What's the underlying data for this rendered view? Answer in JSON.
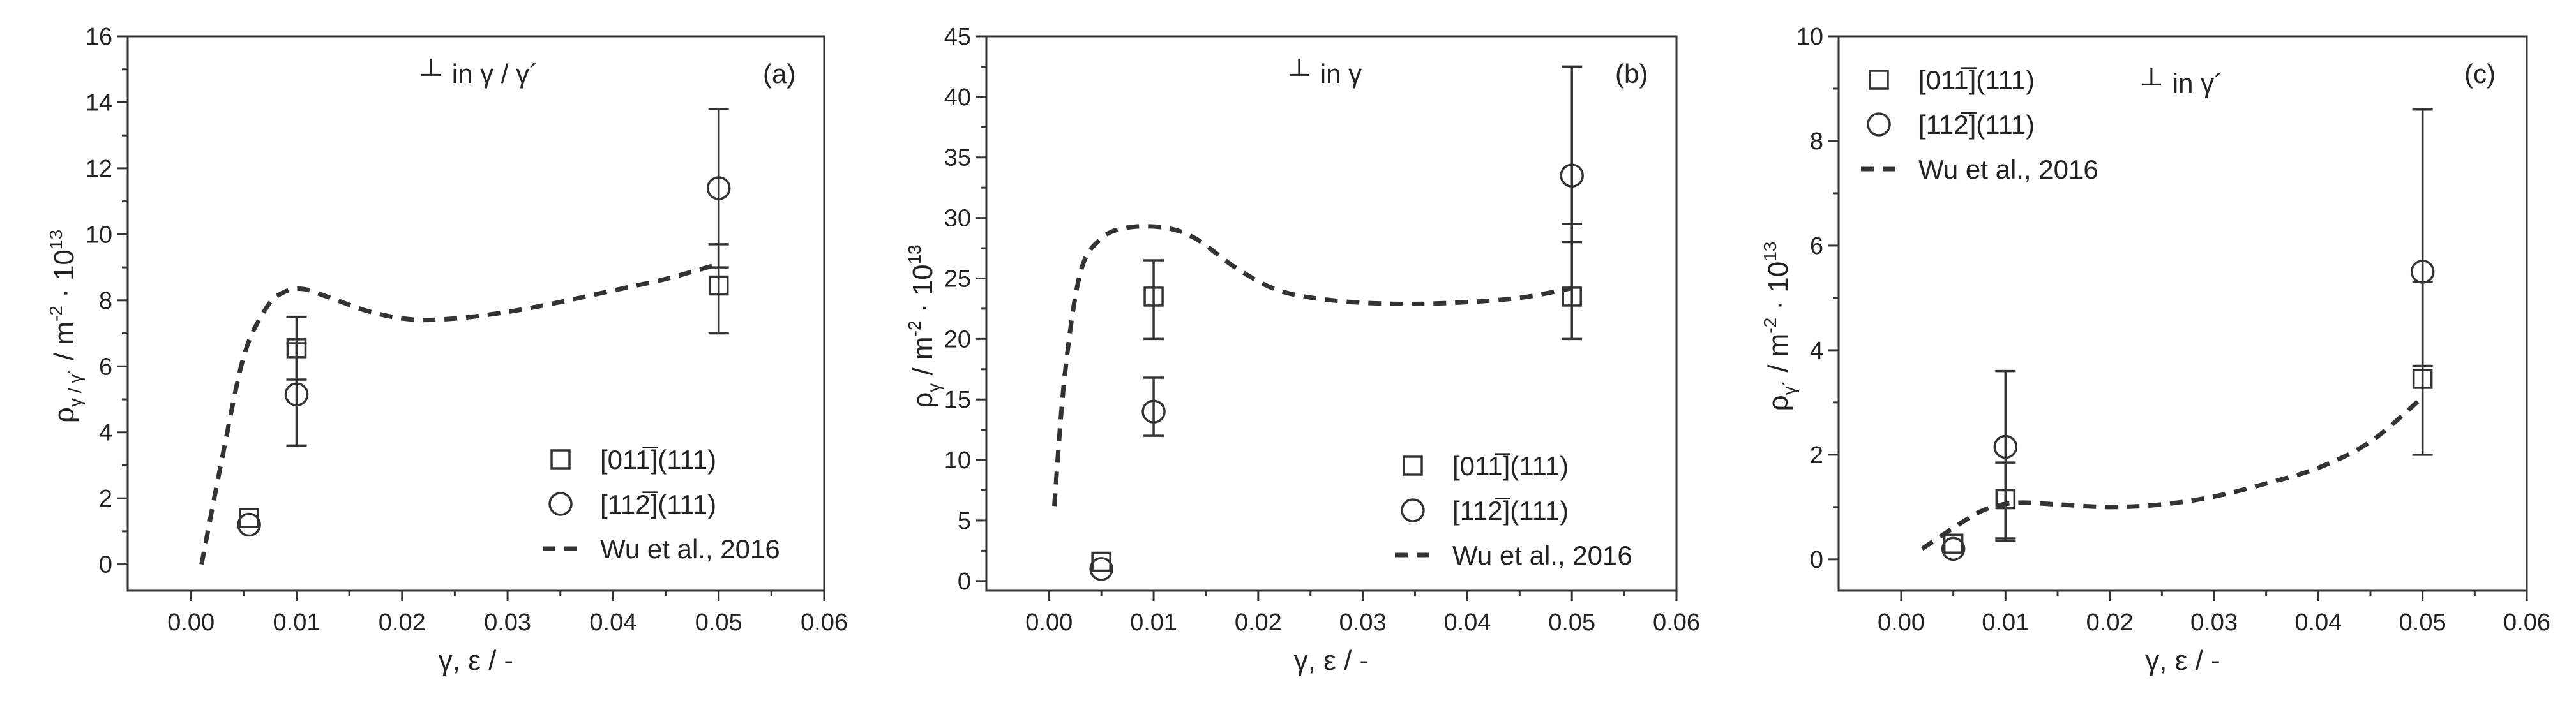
{
  "chart_data": [
    {
      "type": "scatter",
      "panel_label": "(a)",
      "annotation": {
        "symbol": "┴",
        "text": "in γ / γ´"
      },
      "xlabel": "γ, ε / -",
      "ylabel": {
        "main": "ρ",
        "sub": "γ / γ´",
        "rest": " / m",
        "sup1": "-2",
        "dot": " · 10",
        "sup2": "13"
      },
      "xlim": [
        -0.006,
        0.06
      ],
      "ylim": [
        -0.8,
        16
      ],
      "xticks": [
        "0.00",
        "0.01",
        "0.02",
        "0.03",
        "0.04",
        "0.05",
        "0.06"
      ],
      "xtick_values": [
        0,
        0.01,
        0.02,
        0.03,
        0.04,
        0.05,
        0.06
      ],
      "yticks": [
        "0",
        "2",
        "4",
        "6",
        "8",
        "10",
        "12",
        "14",
        "16"
      ],
      "ytick_values": [
        0,
        2,
        4,
        6,
        8,
        10,
        12,
        14,
        16
      ],
      "legend_position": "bottom-right",
      "legend": [
        {
          "marker": "square",
          "label": "[011̅](111)"
        },
        {
          "marker": "circle",
          "label": "[112̅](111)"
        },
        {
          "marker": "dashed",
          "label": "Wu et al., 2016"
        }
      ],
      "series": [
        {
          "marker": "square",
          "points": [
            {
              "x": 0.0055,
              "y": 1.4,
              "err": null
            },
            {
              "x": 0.01,
              "y": 6.55,
              "err": [
                5.6,
                7.5
              ]
            },
            {
              "x": 0.05,
              "y": 8.45,
              "err": [
                7.0,
                9.7
              ]
            }
          ]
        },
        {
          "marker": "circle",
          "points": [
            {
              "x": 0.0055,
              "y": 1.2,
              "err": null
            },
            {
              "x": 0.01,
              "y": 5.15,
              "err": [
                3.6,
                6.7
              ]
            },
            {
              "x": 0.05,
              "y": 11.4,
              "err": [
                9.0,
                13.8
              ]
            }
          ]
        },
        {
          "marker": "dashed",
          "curve": [
            [
              0.001,
              0
            ],
            [
              0.003,
              3.3
            ],
            [
              0.005,
              6.3
            ],
            [
              0.007,
              7.7
            ],
            [
              0.0085,
              8.2
            ],
            [
              0.0105,
              8.35
            ],
            [
              0.013,
              8.1
            ],
            [
              0.017,
              7.65
            ],
            [
              0.021,
              7.42
            ],
            [
              0.025,
              7.45
            ],
            [
              0.03,
              7.65
            ],
            [
              0.035,
              7.95
            ],
            [
              0.04,
              8.3
            ],
            [
              0.045,
              8.65
            ],
            [
              0.05,
              9.1
            ]
          ]
        }
      ]
    },
    {
      "type": "scatter",
      "panel_label": "(b)",
      "annotation": {
        "symbol": "┴",
        "text": "in γ"
      },
      "xlabel": "γ, ε / -",
      "ylabel": {
        "main": "ρ",
        "sub": "γ",
        "rest": " / m",
        "sup1": "-2",
        "dot": " · 10",
        "sup2": "13"
      },
      "xlim": [
        -0.006,
        0.06
      ],
      "ylim": [
        -0.8,
        45
      ],
      "xticks": [
        "0.00",
        "0.01",
        "0.02",
        "0.03",
        "0.04",
        "0.05",
        "0.06"
      ],
      "xtick_values": [
        0,
        0.01,
        0.02,
        0.03,
        0.04,
        0.05,
        0.06
      ],
      "yticks": [
        "0",
        "5",
        "10",
        "15",
        "20",
        "25",
        "30",
        "35",
        "40",
        "45"
      ],
      "ytick_values": [
        0,
        5,
        10,
        15,
        20,
        25,
        30,
        35,
        40,
        45
      ],
      "legend_position": "bottom-right",
      "legend": [
        {
          "marker": "square",
          "label": "[011̅](111)"
        },
        {
          "marker": "circle",
          "label": "[112̅](111)"
        },
        {
          "marker": "dashed",
          "label": "Wu et al., 2016"
        }
      ],
      "series": [
        {
          "marker": "square",
          "points": [
            {
              "x": 0.005,
              "y": 1.6,
              "err": null
            },
            {
              "x": 0.01,
              "y": 23.5,
              "err": [
                20.0,
                26.5
              ]
            },
            {
              "x": 0.05,
              "y": 23.5,
              "err": [
                20.0,
                29.5
              ]
            }
          ]
        },
        {
          "marker": "circle",
          "points": [
            {
              "x": 0.005,
              "y": 1.0,
              "err": null
            },
            {
              "x": 0.01,
              "y": 14.0,
              "err": [
                12.0,
                16.8
              ]
            },
            {
              "x": 0.05,
              "y": 33.5,
              "err": [
                28.0,
                42.5
              ]
            }
          ]
        },
        {
          "marker": "dashed",
          "curve": [
            [
              0.0005,
              6.2
            ],
            [
              0.0015,
              17
            ],
            [
              0.003,
              25.5
            ],
            [
              0.005,
              28.3
            ],
            [
              0.0075,
              29.2
            ],
            [
              0.011,
              29.2
            ],
            [
              0.014,
              28.3
            ],
            [
              0.018,
              25.8
            ],
            [
              0.022,
              24.0
            ],
            [
              0.027,
              23.2
            ],
            [
              0.033,
              22.9
            ],
            [
              0.039,
              23.0
            ],
            [
              0.045,
              23.4
            ],
            [
              0.05,
              24.2
            ]
          ]
        }
      ]
    },
    {
      "type": "scatter",
      "panel_label": "(c)",
      "annotation": {
        "symbol": "┴",
        "text": "in γ´"
      },
      "xlabel": "γ, ε / -",
      "ylabel": {
        "main": "ρ",
        "sub": "γ´",
        "rest": " / m",
        "sup1": "-2",
        "dot": " · 10",
        "sup2": "13"
      },
      "xlim": [
        -0.006,
        0.06
      ],
      "ylim": [
        -0.6,
        10
      ],
      "xticks": [
        "0.00",
        "0.01",
        "0.02",
        "0.03",
        "0.04",
        "0.05",
        "0.06"
      ],
      "xtick_values": [
        0,
        0.01,
        0.02,
        0.03,
        0.04,
        0.05,
        0.06
      ],
      "yticks": [
        "0",
        "2",
        "4",
        "6",
        "8",
        "10"
      ],
      "ytick_values": [
        0,
        2,
        4,
        6,
        8,
        10
      ],
      "legend_position": "top-left",
      "legend": [
        {
          "marker": "square",
          "label": "[011̅](111)"
        },
        {
          "marker": "circle",
          "label": "[112̅](111)"
        },
        {
          "marker": "dashed",
          "label": "Wu et al., 2016"
        }
      ],
      "series": [
        {
          "marker": "square",
          "points": [
            {
              "x": 0.005,
              "y": 0.3,
              "err": null
            },
            {
              "x": 0.01,
              "y": 1.15,
              "err": [
                0.4,
                1.85
              ]
            },
            {
              "x": 0.05,
              "y": 3.45,
              "err": [
                2.0,
                5.3
              ]
            }
          ]
        },
        {
          "marker": "circle",
          "points": [
            {
              "x": 0.005,
              "y": 0.2,
              "err": null
            },
            {
              "x": 0.01,
              "y": 2.15,
              "err": [
                0.35,
                3.6
              ]
            },
            {
              "x": 0.05,
              "y": 5.5,
              "err": [
                3.7,
                8.6
              ]
            }
          ]
        },
        {
          "marker": "dashed",
          "curve": [
            [
              0.002,
              0.2
            ],
            [
              0.005,
              0.6
            ],
            [
              0.008,
              0.95
            ],
            [
              0.011,
              1.08
            ],
            [
              0.015,
              1.05
            ],
            [
              0.02,
              1.0
            ],
            [
              0.025,
              1.05
            ],
            [
              0.03,
              1.2
            ],
            [
              0.035,
              1.45
            ],
            [
              0.04,
              1.75
            ],
            [
              0.045,
              2.25
            ],
            [
              0.05,
              3.1
            ]
          ]
        }
      ]
    }
  ]
}
